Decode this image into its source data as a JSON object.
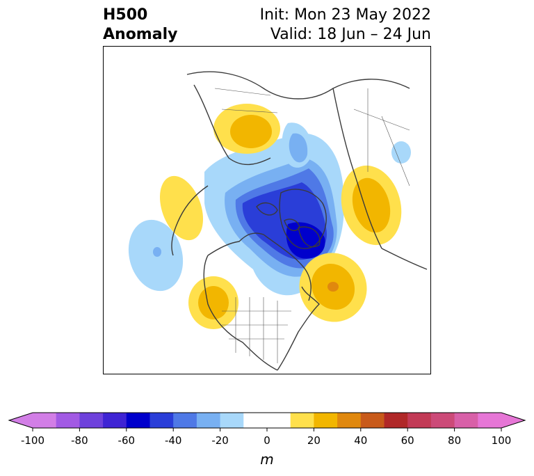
{
  "title": {
    "line1": "H500",
    "line2": "Anomaly",
    "init": "Init: Mon 23 May 2022",
    "valid": "Valid: 18 Jun – 24 Jun"
  },
  "colorbar": {
    "unit_label": "m",
    "min": -100,
    "max": 100,
    "ticks": [
      "-100",
      "-80",
      "-60",
      "-40",
      "-20",
      "0",
      "20",
      "40",
      "60",
      "80",
      "100"
    ],
    "colors": [
      "#d27ee6",
      "#a25ae4",
      "#6e41dc",
      "#3f24d4",
      "#0000cc",
      "#2a3ed8",
      "#4f79e6",
      "#78b0f2",
      "#a8d8fa",
      "#ffffff",
      "#ffffff",
      "#ffe04c",
      "#f2b600",
      "#e0880e",
      "#c85a1a",
      "#b02828",
      "#c23a56",
      "#cc4a78",
      "#d860a8",
      "#e676d6"
    ],
    "under_color": "#d27ee6",
    "over_color": "#e676d6"
  },
  "map": {
    "projection": "north-polar-stereographic",
    "anomaly_features": [
      {
        "name": "negative-anomaly-arctic-hudson",
        "value_m": -70
      },
      {
        "name": "negative-anomaly-north-pacific",
        "value_m": -20
      },
      {
        "name": "negative-anomaly-northwest-russia",
        "value_m": -10
      },
      {
        "name": "positive-anomaly-north-atlantic",
        "value_m": 40
      },
      {
        "name": "positive-anomaly-western-us",
        "value_m": 30
      },
      {
        "name": "positive-anomaly-scandinavia",
        "value_m": 30
      },
      {
        "name": "positive-anomaly-east-siberia",
        "value_m": 30
      },
      {
        "name": "positive-anomaly-gulf-of-alaska",
        "value_m": 10
      }
    ]
  }
}
